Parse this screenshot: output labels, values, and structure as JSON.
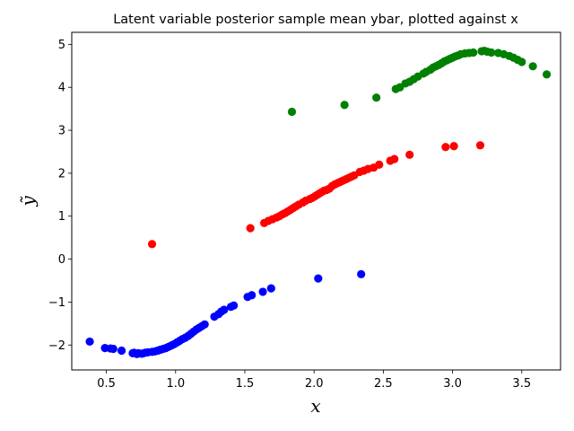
{
  "chart_data": {
    "type": "scatter",
    "title": "Latent variable posterior sample mean ybar, plotted against x",
    "xlabel": "x",
    "ylabel": "ỹ",
    "xlim": [
      0.25,
      3.78
    ],
    "ylim": [
      -2.58,
      5.28
    ],
    "xticks": [
      0.5,
      1.0,
      1.5,
      2.0,
      2.5,
      3.0,
      3.5
    ],
    "xtick_labels": [
      "0.5",
      "1.0",
      "1.5",
      "2.0",
      "2.5",
      "3.0",
      "3.5"
    ],
    "yticks": [
      -2,
      -1,
      0,
      1,
      2,
      3,
      4,
      5
    ],
    "ytick_labels": [
      "−2",
      "−1",
      "0",
      "1",
      "2",
      "3",
      "4",
      "5"
    ],
    "grid": false,
    "series": [
      {
        "color": "#0000ff",
        "points": [
          [
            0.38,
            -1.92
          ],
          [
            0.49,
            -2.07
          ],
          [
            0.53,
            -2.08
          ],
          [
            0.55,
            -2.09
          ],
          [
            0.61,
            -2.13
          ],
          [
            0.69,
            -2.19
          ],
          [
            0.7,
            -2.18
          ],
          [
            0.72,
            -2.21
          ],
          [
            0.73,
            -2.19
          ],
          [
            0.75,
            -2.2
          ],
          [
            0.76,
            -2.2
          ],
          [
            0.78,
            -2.18
          ],
          [
            0.8,
            -2.17
          ],
          [
            0.83,
            -2.16
          ],
          [
            0.85,
            -2.15
          ],
          [
            0.87,
            -2.13
          ],
          [
            0.89,
            -2.11
          ],
          [
            0.91,
            -2.09
          ],
          [
            0.93,
            -2.07
          ],
          [
            0.95,
            -2.04
          ],
          [
            0.97,
            -2.01
          ],
          [
            0.99,
            -1.98
          ],
          [
            1.01,
            -1.94
          ],
          [
            1.03,
            -1.9
          ],
          [
            1.05,
            -1.86
          ],
          [
            1.07,
            -1.83
          ],
          [
            1.09,
            -1.79
          ],
          [
            1.11,
            -1.74
          ],
          [
            1.13,
            -1.69
          ],
          [
            1.15,
            -1.64
          ],
          [
            1.17,
            -1.6
          ],
          [
            1.19,
            -1.56
          ],
          [
            1.21,
            -1.52
          ],
          [
            1.28,
            -1.34
          ],
          [
            1.31,
            -1.28
          ],
          [
            1.33,
            -1.22
          ],
          [
            1.35,
            -1.18
          ],
          [
            1.4,
            -1.11
          ],
          [
            1.42,
            -1.08
          ],
          [
            1.52,
            -0.88
          ],
          [
            1.55,
            -0.84
          ],
          [
            1.63,
            -0.76
          ],
          [
            1.69,
            -0.68
          ],
          [
            2.03,
            -0.45
          ],
          [
            2.34,
            -0.35
          ]
        ]
      },
      {
        "color": "#ff0000",
        "points": [
          [
            0.83,
            0.35
          ],
          [
            1.54,
            0.72
          ],
          [
            1.64,
            0.84
          ],
          [
            1.67,
            0.89
          ],
          [
            1.7,
            0.93
          ],
          [
            1.73,
            0.97
          ],
          [
            1.75,
            1.0
          ],
          [
            1.77,
            1.04
          ],
          [
            1.79,
            1.07
          ],
          [
            1.81,
            1.11
          ],
          [
            1.83,
            1.15
          ],
          [
            1.85,
            1.19
          ],
          [
            1.87,
            1.23
          ],
          [
            1.89,
            1.27
          ],
          [
            1.92,
            1.32
          ],
          [
            1.94,
            1.36
          ],
          [
            1.97,
            1.4
          ],
          [
            1.99,
            1.43
          ],
          [
            2.01,
            1.47
          ],
          [
            2.03,
            1.51
          ],
          [
            2.05,
            1.55
          ],
          [
            2.07,
            1.59
          ],
          [
            2.09,
            1.61
          ],
          [
            2.11,
            1.64
          ],
          [
            2.13,
            1.7
          ],
          [
            2.15,
            1.74
          ],
          [
            2.17,
            1.77
          ],
          [
            2.19,
            1.8
          ],
          [
            2.21,
            1.83
          ],
          [
            2.23,
            1.86
          ],
          [
            2.25,
            1.89
          ],
          [
            2.27,
            1.92
          ],
          [
            2.29,
            1.95
          ],
          [
            2.33,
            2.03
          ],
          [
            2.36,
            2.06
          ],
          [
            2.39,
            2.1
          ],
          [
            2.43,
            2.13
          ],
          [
            2.47,
            2.2
          ],
          [
            2.55,
            2.29
          ],
          [
            2.58,
            2.33
          ],
          [
            2.69,
            2.43
          ],
          [
            2.95,
            2.61
          ],
          [
            3.01,
            2.63
          ],
          [
            3.2,
            2.65
          ]
        ]
      },
      {
        "color": "#008000",
        "points": [
          [
            1.84,
            3.43
          ],
          [
            2.22,
            3.59
          ],
          [
            2.45,
            3.76
          ],
          [
            2.59,
            3.96
          ],
          [
            2.62,
            4.0
          ],
          [
            2.66,
            4.09
          ],
          [
            2.69,
            4.13
          ],
          [
            2.72,
            4.19
          ],
          [
            2.75,
            4.25
          ],
          [
            2.79,
            4.32
          ],
          [
            2.81,
            4.36
          ],
          [
            2.84,
            4.41
          ],
          [
            2.86,
            4.46
          ],
          [
            2.88,
            4.49
          ],
          [
            2.9,
            4.52
          ],
          [
            2.92,
            4.56
          ],
          [
            2.94,
            4.6
          ],
          [
            2.96,
            4.63
          ],
          [
            2.98,
            4.66
          ],
          [
            3.0,
            4.69
          ],
          [
            3.02,
            4.72
          ],
          [
            3.04,
            4.74
          ],
          [
            3.06,
            4.77
          ],
          [
            3.09,
            4.79
          ],
          [
            3.12,
            4.8
          ],
          [
            3.15,
            4.81
          ],
          [
            3.21,
            4.84
          ],
          [
            3.23,
            4.85
          ],
          [
            3.25,
            4.83
          ],
          [
            3.28,
            4.81
          ],
          [
            3.33,
            4.8
          ],
          [
            3.37,
            4.77
          ],
          [
            3.41,
            4.73
          ],
          [
            3.44,
            4.69
          ],
          [
            3.47,
            4.64
          ],
          [
            3.5,
            4.59
          ],
          [
            3.58,
            4.49
          ],
          [
            3.68,
            4.3
          ]
        ]
      }
    ]
  }
}
